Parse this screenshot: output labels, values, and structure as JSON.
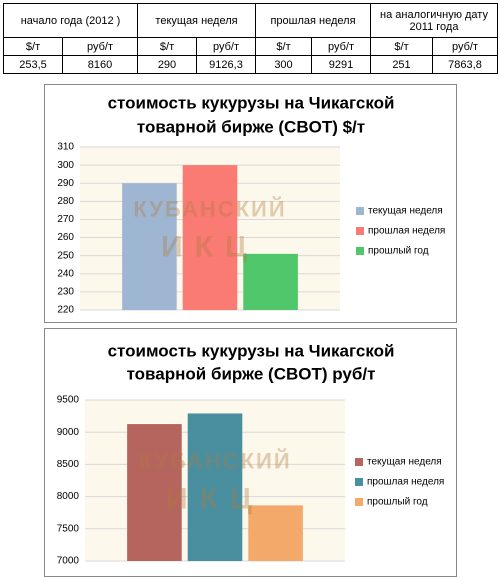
{
  "table": {
    "header": [
      "начало года (2012 )",
      "текущая неделя",
      "прошлая неделя",
      "на аналогичную дату 2011 года"
    ],
    "units": [
      "$/т",
      "руб/т",
      "$/т",
      "руб/т",
      "$/т",
      "руб/т",
      "$/т",
      "руб/т"
    ],
    "rows": [
      [
        "253,5",
        "8160",
        "290",
        "9126,3",
        "300",
        "9291",
        "251",
        "7863,8"
      ]
    ]
  },
  "chart_data": [
    {
      "type": "bar",
      "title": [
        "стоимость кукурузы на Чикагской",
        "товарной бирже (CBOT) $/т"
      ],
      "watermark": [
        "КУБАНСКИЙ",
        "ИКЦ"
      ],
      "categories": [
        null
      ],
      "series": [
        {
          "name": "текущая неделя",
          "color": "#9fb6d3",
          "values": [
            290
          ]
        },
        {
          "name": "прошлая неделя",
          "color": "#f97b73",
          "values": [
            300
          ]
        },
        {
          "name": "прошлый год",
          "color": "#4fc76a",
          "values": [
            251
          ]
        }
      ],
      "ylim": [
        220,
        310
      ],
      "yticks": [
        220,
        230,
        240,
        250,
        260,
        270,
        280,
        290,
        300,
        310
      ],
      "grid": true,
      "legend": "right"
    },
    {
      "type": "bar",
      "title": [
        "стоимость кукурузы на Чикагской",
        "товарной бирже (CBOT) руб/т"
      ],
      "watermark": [
        "КУБАНСКИЙ",
        "ИКЦ"
      ],
      "categories": [
        null
      ],
      "series": [
        {
          "name": "текущая неделя",
          "color": "#b5655e",
          "values": [
            9126.3
          ]
        },
        {
          "name": "прошлая неделя",
          "color": "#4a8fa0",
          "values": [
            9291
          ]
        },
        {
          "name": "прошлый год",
          "color": "#f2a96a",
          "values": [
            7863.8
          ]
        }
      ],
      "ylim": [
        7000,
        9500
      ],
      "yticks": [
        7000,
        7500,
        8000,
        8500,
        9000,
        9500
      ],
      "grid": true,
      "legend": "right"
    }
  ]
}
